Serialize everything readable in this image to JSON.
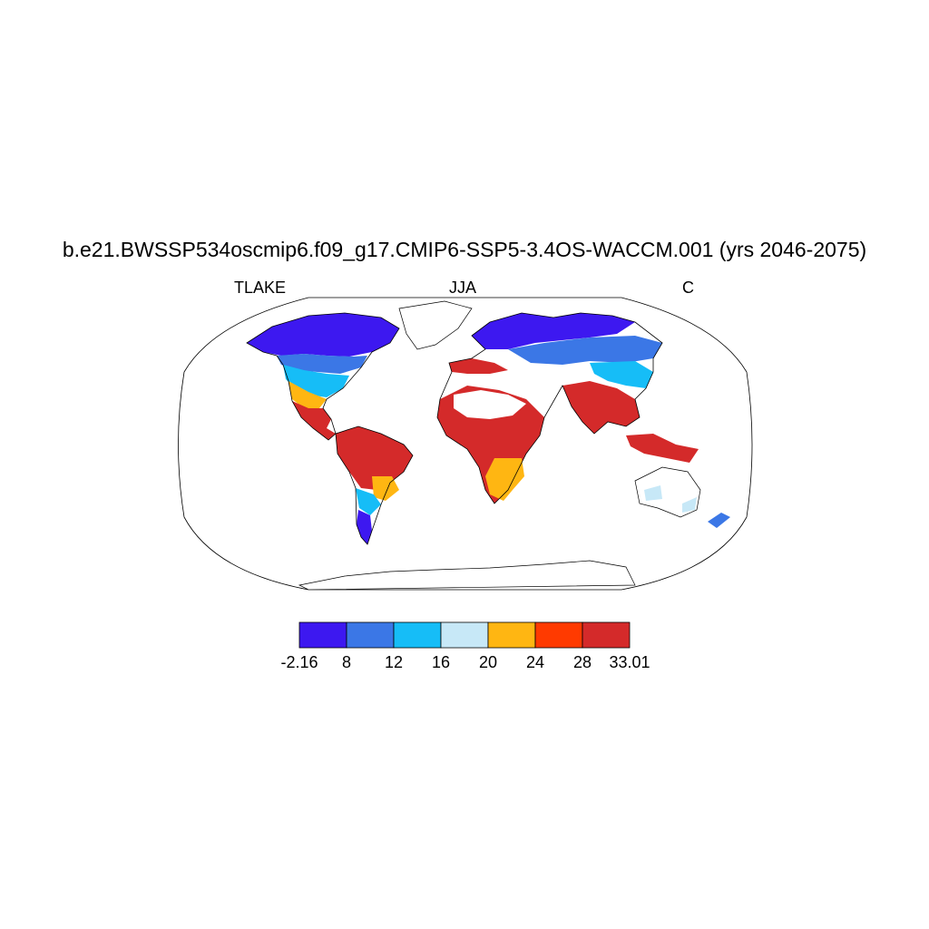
{
  "plot": {
    "title": "b.e21.BWSSP534oscmip6.f09_g17.CMIP6-SSP5-3.4OS-WACCM.001 (yrs 2046-2075)",
    "left_label": "TLAKE",
    "center_label": "JJA",
    "right_label": "C"
  },
  "colorbar": {
    "labels": [
      "-2.16",
      "8",
      "12",
      "16",
      "20",
      "24",
      "28",
      "33.01"
    ],
    "colors": [
      "#3d18f0",
      "#3b77e6",
      "#16bdf7",
      "#c7e8f7",
      "#ffb612",
      "#ff3a00",
      "#d42a2a"
    ]
  },
  "map": {
    "projection": "Robinson",
    "land_outline_color": "#000000",
    "region_colors": {
      "north_america_north": "#3d18f0",
      "north_america_mid": "#3b77e6",
      "north_america_south": "#16bdf7",
      "central_america": "#d42a2a",
      "south_america_north": "#d42a2a",
      "south_america_south": "#16bdf7",
      "patagonia": "#3d18f0",
      "scandinavia_siberia": "#3d18f0",
      "central_asia": "#3b77e6",
      "africa": "#d42a2a",
      "india_southeast_asia": "#d42a2a",
      "australia": "#c7e8f7"
    }
  }
}
